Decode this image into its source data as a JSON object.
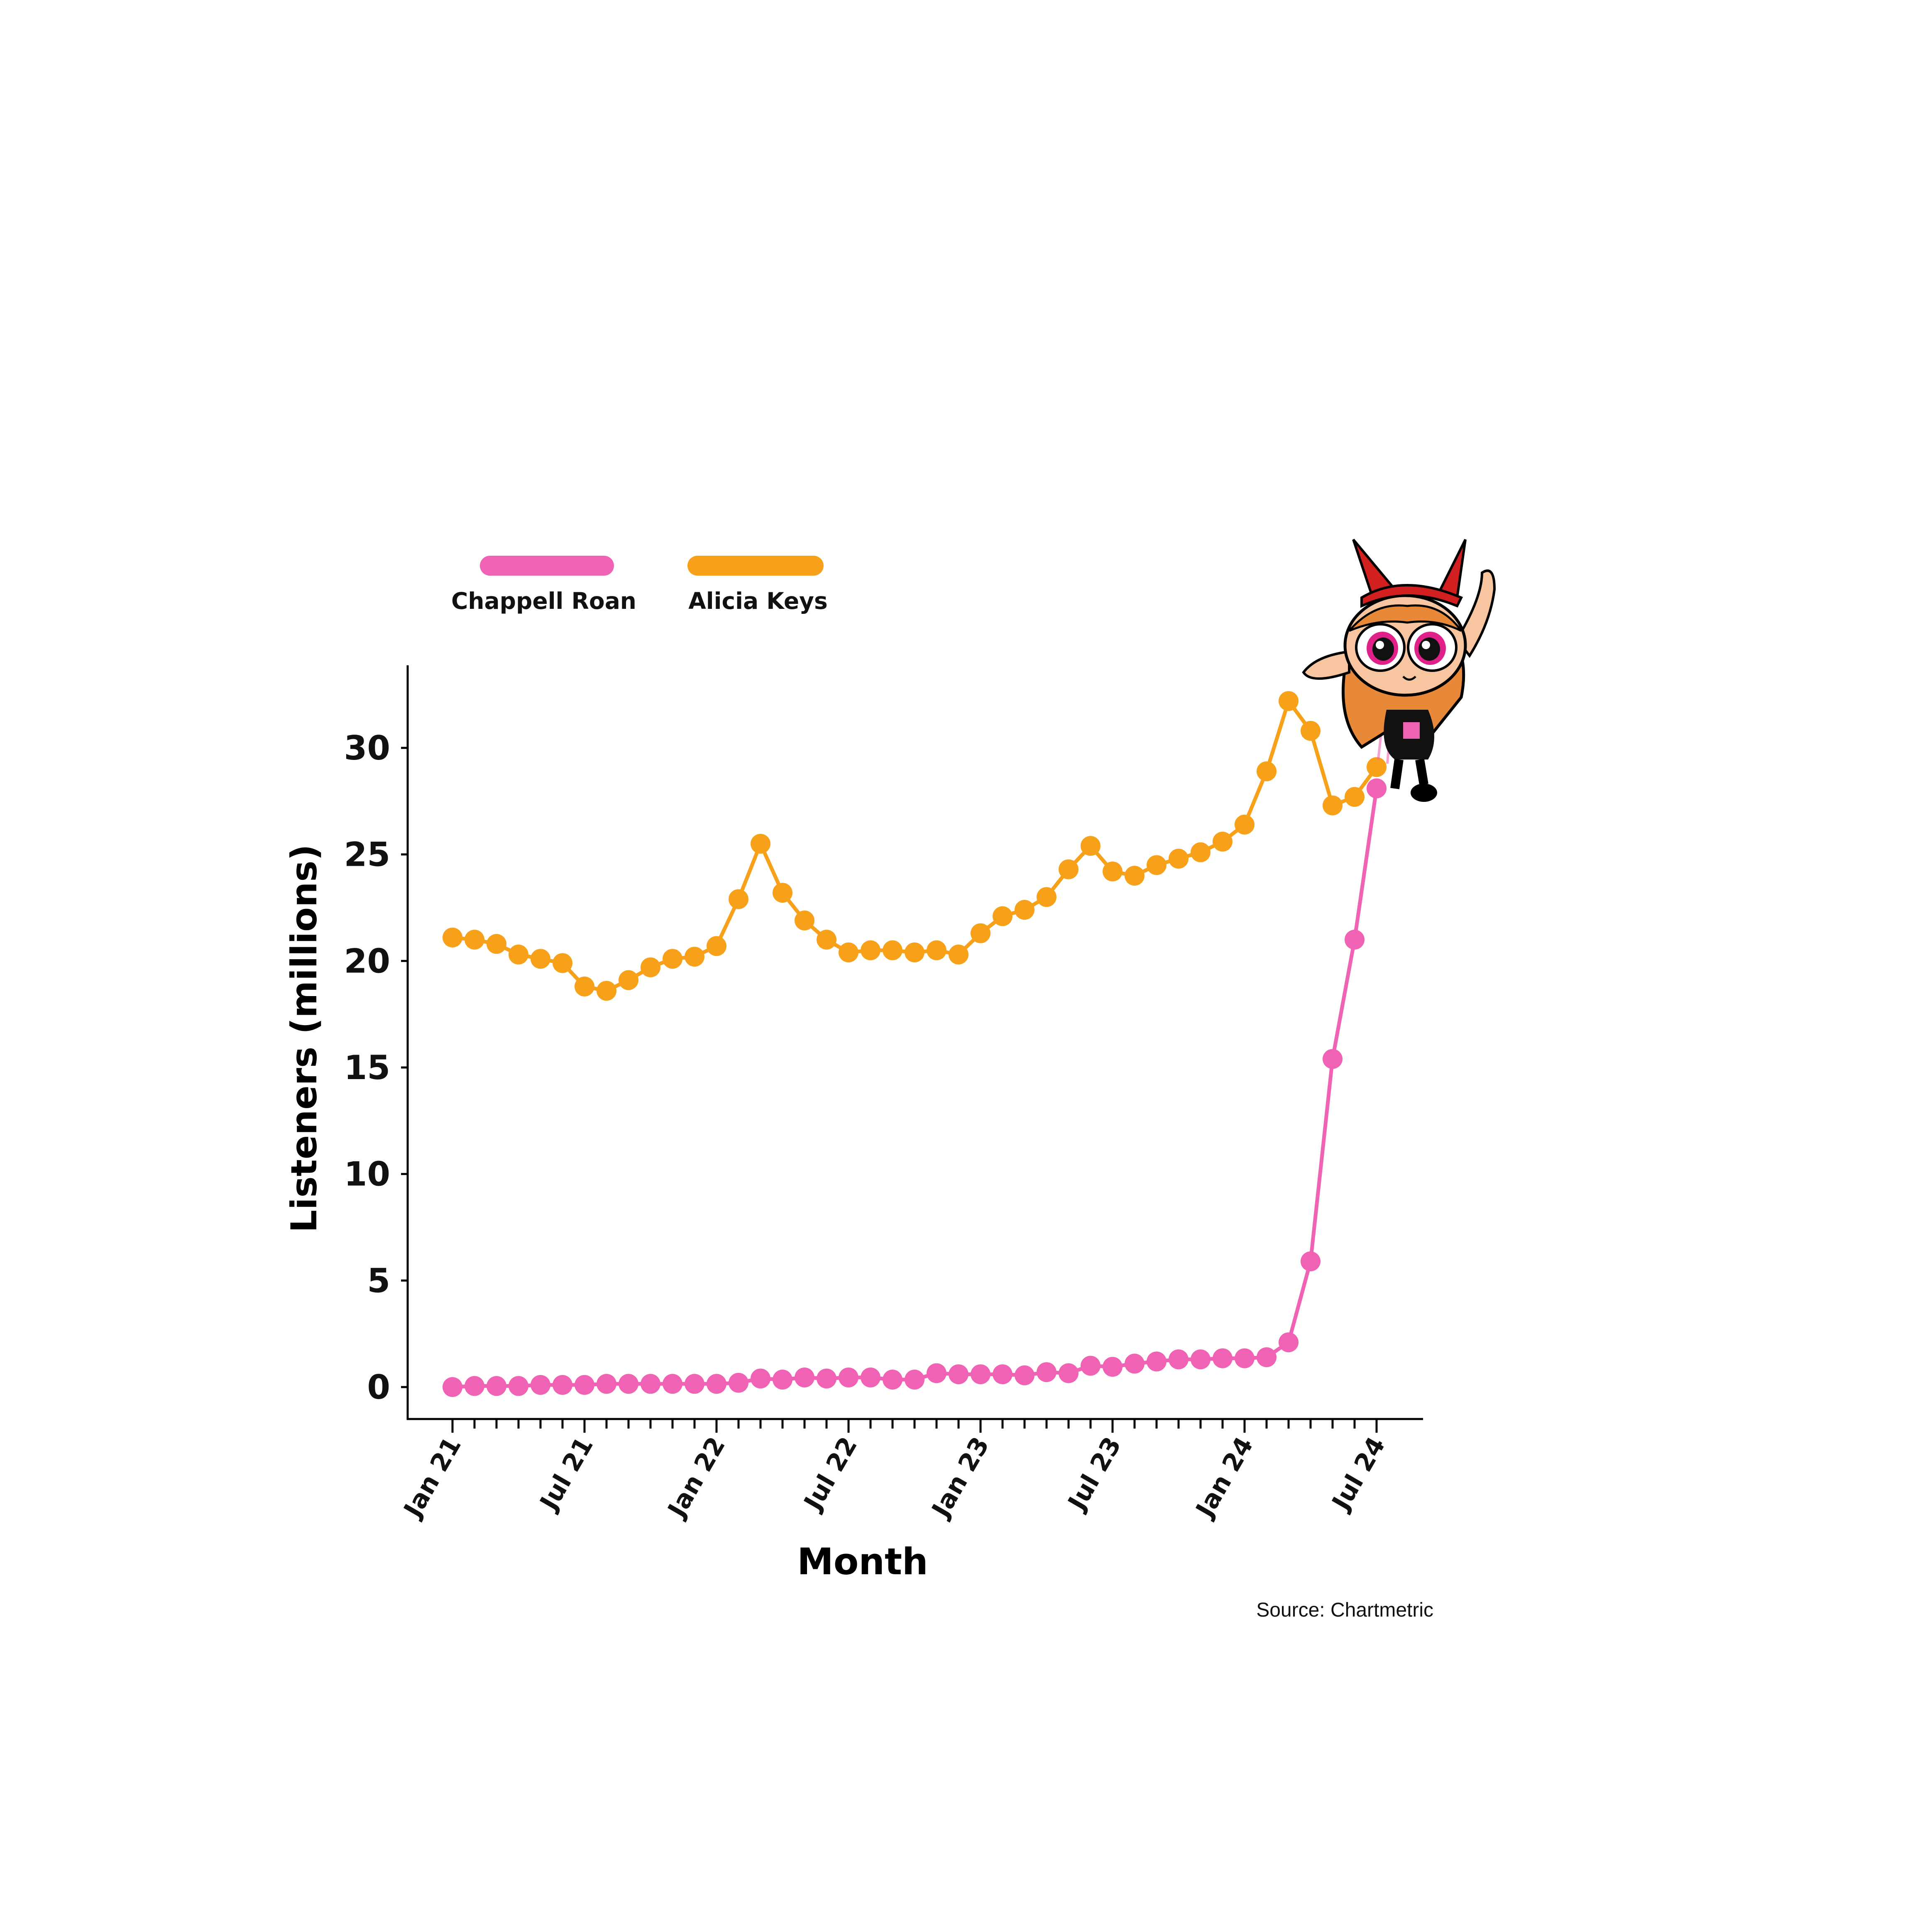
{
  "chart_data": {
    "type": "line",
    "xlabel": "Month",
    "ylabel": "Listeners (millions)",
    "ylim": [
      0,
      33
    ],
    "yticks": [
      0,
      5,
      10,
      15,
      20,
      25,
      30
    ],
    "xtick_labels": [
      "Jan 21",
      "Jul 21",
      "Jan 22",
      "Jul 22",
      "Jan 23",
      "Jul 23",
      "Jan 24",
      "Jul 24"
    ],
    "x": [
      "Jan 21",
      "Feb 21",
      "Mar 21",
      "Apr 21",
      "May 21",
      "Jun 21",
      "Jul 21",
      "Aug 21",
      "Sep 21",
      "Oct 21",
      "Nov 21",
      "Dec 21",
      "Jan 22",
      "Feb 22",
      "Mar 22",
      "Apr 22",
      "May 22",
      "Jun 22",
      "Jul 22",
      "Aug 22",
      "Sep 22",
      "Oct 22",
      "Nov 22",
      "Dec 22",
      "Jan 23",
      "Feb 23",
      "Mar 23",
      "Apr 23",
      "May 23",
      "Jun 23",
      "Jul 23",
      "Aug 23",
      "Sep 23",
      "Oct 23",
      "Nov 23",
      "Dec 23",
      "Jan 24",
      "Feb 24",
      "Mar 24",
      "Apr 24",
      "May 24",
      "Jun 24",
      "Jul 24"
    ],
    "grid": false,
    "legend_position": "top-left",
    "series": [
      {
        "name": "Chappell Roan",
        "color": "#f062b3",
        "values": [
          0.0,
          0.05,
          0.05,
          0.05,
          0.1,
          0.1,
          0.1,
          0.15,
          0.15,
          0.15,
          0.15,
          0.15,
          0.15,
          0.2,
          0.4,
          0.35,
          0.45,
          0.4,
          0.45,
          0.45,
          0.35,
          0.35,
          0.65,
          0.6,
          0.6,
          0.6,
          0.55,
          0.7,
          0.65,
          1.0,
          0.95,
          1.1,
          1.2,
          1.3,
          1.3,
          1.35,
          1.35,
          1.4,
          2.1,
          5.9,
          15.4,
          21.0,
          28.1
        ]
      },
      {
        "name": "Alicia Keys",
        "color": "#f7a11a",
        "values": [
          21.1,
          21.0,
          20.8,
          20.3,
          20.1,
          19.9,
          18.8,
          18.6,
          19.1,
          19.7,
          20.1,
          20.2,
          20.7,
          22.9,
          25.5,
          23.2,
          21.9,
          21.0,
          20.4,
          20.5,
          20.5,
          20.4,
          20.5,
          20.3,
          21.3,
          22.1,
          22.4,
          23.0,
          24.3,
          25.4,
          24.2,
          24.0,
          24.5,
          24.8,
          25.1,
          25.6,
          26.4,
          28.9,
          32.2,
          30.8,
          27.3,
          27.7,
          29.1
        ]
      }
    ]
  },
  "source": "Source: Chartmetric",
  "mascot": "superhero-girl-illustration"
}
